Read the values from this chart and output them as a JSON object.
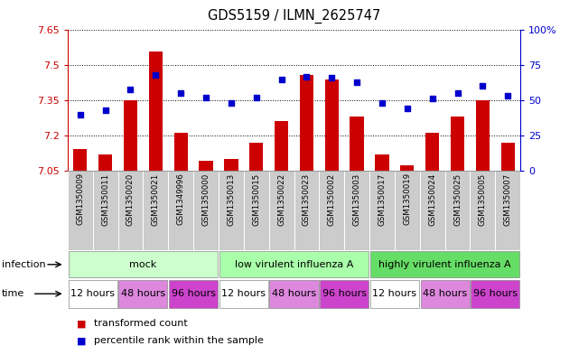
{
  "title": "GDS5159 / ILMN_2625747",
  "samples": [
    "GSM1350009",
    "GSM1350011",
    "GSM1350020",
    "GSM1350021",
    "GSM1349996",
    "GSM1350000",
    "GSM1350013",
    "GSM1350015",
    "GSM1350022",
    "GSM1350023",
    "GSM1350002",
    "GSM1350003",
    "GSM1350017",
    "GSM1350019",
    "GSM1350024",
    "GSM1350025",
    "GSM1350005",
    "GSM1350007"
  ],
  "bar_values": [
    7.14,
    7.12,
    7.35,
    7.56,
    7.21,
    7.09,
    7.1,
    7.17,
    7.26,
    7.46,
    7.44,
    7.28,
    7.12,
    7.07,
    7.21,
    7.28,
    7.35,
    7.17
  ],
  "dot_values_pct": [
    40,
    43,
    58,
    68,
    55,
    52,
    48,
    52,
    65,
    67,
    66,
    63,
    48,
    44,
    51,
    55,
    60,
    53
  ],
  "ylim_left": [
    7.05,
    7.65
  ],
  "ylim_right": [
    0,
    100
  ],
  "yticks_left": [
    7.05,
    7.2,
    7.35,
    7.5,
    7.65
  ],
  "ytick_labels_left": [
    "7.05",
    "7.2",
    "7.35",
    "7.5",
    "7.65"
  ],
  "yticks_right": [
    0,
    25,
    50,
    75,
    100
  ],
  "ytick_labels_right": [
    "0",
    "25",
    "50",
    "75",
    "100%"
  ],
  "bar_color": "#CC0000",
  "dot_color": "#0000CC",
  "bar_baseline": 7.05,
  "left_tick_color": "#CC0000",
  "right_tick_color": "#0000CC",
  "infection_groups": [
    {
      "label": "mock",
      "start": 0,
      "end": 6,
      "color": "#ccffcc"
    },
    {
      "label": "low virulent influenza A",
      "start": 6,
      "end": 12,
      "color": "#aaffaa"
    },
    {
      "label": "highly virulent influenza A",
      "start": 12,
      "end": 18,
      "color": "#66dd66"
    }
  ],
  "time_colors": {
    "12 hours": "#ffffff",
    "48 hours": "#dd88dd",
    "96 hours": "#cc44cc"
  },
  "time_groups": [
    {
      "label": "12 hours",
      "start": 0,
      "end": 2
    },
    {
      "label": "48 hours",
      "start": 2,
      "end": 4
    },
    {
      "label": "96 hours",
      "start": 4,
      "end": 6
    },
    {
      "label": "12 hours",
      "start": 6,
      "end": 8
    },
    {
      "label": "48 hours",
      "start": 8,
      "end": 10
    },
    {
      "label": "96 hours",
      "start": 10,
      "end": 12
    },
    {
      "label": "12 hours",
      "start": 12,
      "end": 14
    },
    {
      "label": "48 hours",
      "start": 14,
      "end": 16
    },
    {
      "label": "96 hours",
      "start": 16,
      "end": 18
    }
  ],
  "infection_label": "infection",
  "time_label": "time",
  "legend_bar_label": "transformed count",
  "legend_dot_label": "percentile rank within the sample",
  "sample_box_color": "#cccccc",
  "grid_color": "#000000",
  "grid_linestyle": ":"
}
